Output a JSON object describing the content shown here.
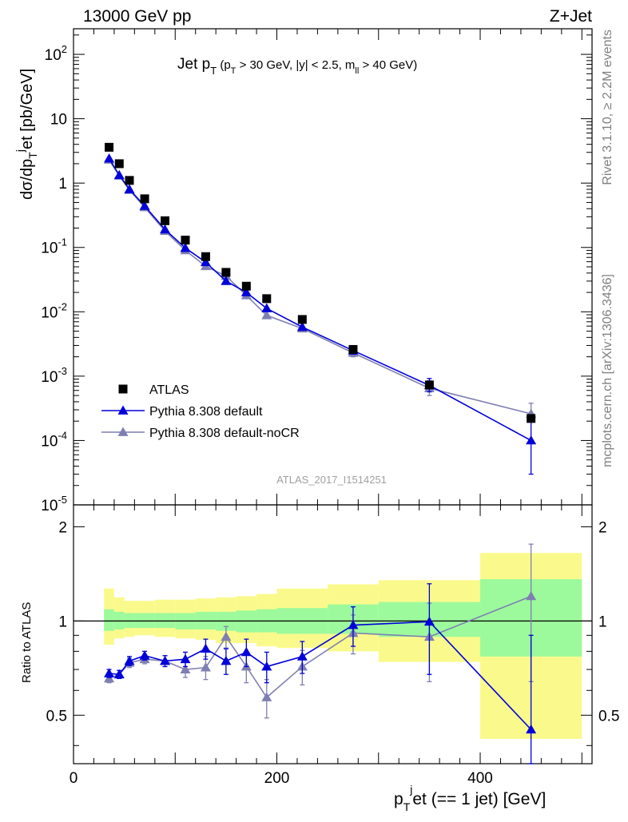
{
  "header": {
    "left": "13000 GeV pp",
    "right": "Z+Jet"
  },
  "side_text": {
    "rivet": "Rivet 3.1.10, ≥ 2.2M events",
    "mcplots": "mcplots.cern.ch [arXiv:1306.3436]"
  },
  "colors": {
    "atlas": "#000000",
    "default": "#0000d9",
    "nocr": "#7f7fb2",
    "band_inner": "#9cfa9c",
    "band_outer": "#fafa8c"
  },
  "chart_data": [
    {
      "type": "scatter",
      "role": "main",
      "title": "Jet p_T (p_T > 30 GeV, |y| < 2.5, m_ll > 40 GeV)",
      "ylabel": "dσ/dp_T^jet [pb/GeV]",
      "watermark": "ATLAS_2017_I1514251",
      "yscale": "log",
      "xlim": [
        0,
        510
      ],
      "ylim": [
        1e-05,
        250
      ],
      "y_ticks": [
        "10^-5",
        "10^-4",
        "10^-3",
        "10^-2",
        "10^-1",
        "1",
        "10",
        "10^2"
      ],
      "legend": {
        "position": "bottom-left",
        "entries": [
          "ATLAS",
          "Pythia 8.308 default",
          "Pythia 8.308 default-noCR"
        ]
      },
      "x": [
        35,
        45,
        55,
        70,
        90,
        110,
        130,
        150,
        170,
        190,
        225,
        275,
        350,
        450
      ],
      "series": [
        {
          "name": "ATLAS",
          "marker": "square",
          "values": [
            3.6,
            2.0,
            1.1,
            0.57,
            0.26,
            0.13,
            0.072,
            0.041,
            0.025,
            0.016,
            0.0076,
            0.0026,
            0.00073,
            0.00022
          ]
        },
        {
          "name": "Pythia 8.308 default",
          "marker": "triangle",
          "values": [
            2.4,
            1.33,
            0.8,
            0.44,
            0.19,
            0.098,
            0.059,
            0.03,
            0.02,
            0.0113,
            0.0058,
            0.0025,
            0.00072,
            0.0001
          ],
          "err_low": [
            0,
            0,
            0,
            0,
            0,
            0,
            0,
            0,
            0,
            0,
            0,
            0.0003,
            0.00015,
            7e-05
          ],
          "err_high": [
            0,
            0,
            0,
            0,
            0,
            0,
            0,
            0,
            0,
            0,
            0,
            0.0003,
            0.0002,
            0.00013
          ]
        },
        {
          "name": "Pythia 8.308 default-noCR",
          "marker": "triangle",
          "values": [
            2.3,
            1.3,
            0.78,
            0.42,
            0.18,
            0.09,
            0.051,
            0.036,
            0.018,
            0.0088,
            0.0055,
            0.0023,
            0.00065,
            0.00026
          ],
          "err_low": [
            0,
            0,
            0,
            0,
            0,
            0,
            0,
            0,
            0,
            0,
            0,
            0.0003,
            0.00015,
            6e-05
          ],
          "err_high": [
            0,
            0,
            0,
            0,
            0,
            0,
            0,
            0,
            0,
            0,
            0,
            0.0003,
            0.0002,
            0.00012
          ]
        }
      ]
    },
    {
      "type": "line",
      "role": "ratio",
      "ylabel": "Ratio to ATLAS",
      "xlabel": "p_T^jet (== 1 jet) [GeV]",
      "xlim": [
        0,
        510
      ],
      "ylim": [
        0.35,
        2.35
      ],
      "x_ticks": [
        0,
        200,
        400
      ],
      "y_ticks": [
        0.5,
        1,
        2
      ],
      "bands": {
        "edges": [
          30,
          40,
          50,
          60,
          80,
          100,
          120,
          140,
          160,
          180,
          200,
          250,
          300,
          400,
          500
        ],
        "inner_low": [
          0.93,
          0.94,
          0.95,
          0.95,
          0.95,
          0.94,
          0.94,
          0.93,
          0.92,
          0.92,
          0.91,
          0.91,
          0.89,
          0.77
        ],
        "inner_high": [
          1.09,
          1.07,
          1.06,
          1.06,
          1.06,
          1.06,
          1.07,
          1.07,
          1.08,
          1.09,
          1.1,
          1.13,
          1.15,
          1.36
        ],
        "outer_low": [
          0.84,
          0.88,
          0.89,
          0.9,
          0.89,
          0.88,
          0.87,
          0.85,
          0.85,
          0.83,
          0.82,
          0.8,
          0.74,
          0.42
        ],
        "outer_high": [
          1.27,
          1.19,
          1.16,
          1.16,
          1.17,
          1.17,
          1.18,
          1.19,
          1.2,
          1.22,
          1.27,
          1.31,
          1.35,
          1.65
        ]
      },
      "x": [
        35,
        45,
        55,
        70,
        90,
        110,
        130,
        150,
        170,
        190,
        225,
        275,
        350,
        450
      ],
      "series": [
        {
          "name": "Pythia 8.308 default",
          "values": [
            0.68,
            0.675,
            0.745,
            0.775,
            0.745,
            0.755,
            0.815,
            0.745,
            0.795,
            0.715,
            0.77,
            0.97,
            0.995,
            0.45
          ],
          "err": [
            0.02,
            0.02,
            0.025,
            0.025,
            0.03,
            0.04,
            0.06,
            0.07,
            0.08,
            0.08,
            0.09,
            0.14,
            0.32,
            0.45
          ]
        },
        {
          "name": "Pythia 8.308 default-noCR",
          "values": [
            0.655,
            0.675,
            0.735,
            0.755,
            0.745,
            0.7,
            0.71,
            0.89,
            0.715,
            0.57,
            0.715,
            0.915,
            0.89,
            1.2
          ],
          "err": [
            0.02,
            0.02,
            0.025,
            0.025,
            0.03,
            0.04,
            0.06,
            0.07,
            0.08,
            0.08,
            0.09,
            0.13,
            0.25,
            0.56
          ]
        }
      ]
    }
  ]
}
